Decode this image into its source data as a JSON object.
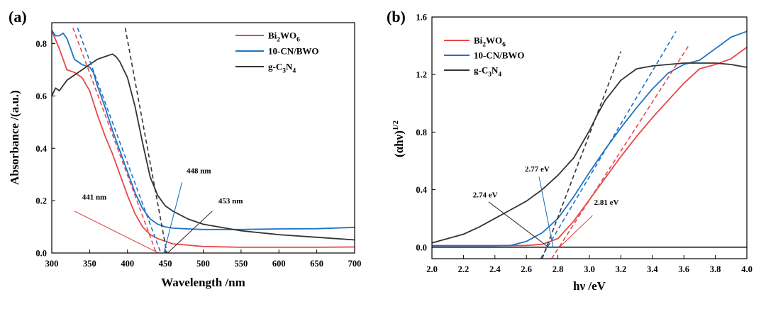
{
  "chart_data": [
    {
      "panel": "(a)",
      "type": "line",
      "title": "",
      "xlabel": "Wavelength /nm",
      "ylabel": "Absorbance /(a.u.)",
      "xlim": [
        300,
        700
      ],
      "ylim": [
        0,
        0.88
      ],
      "xticks": [
        "300",
        "350",
        "400",
        "450",
        "500",
        "550",
        "600",
        "650",
        "700"
      ],
      "yticks": [
        "0.0",
        "0.2",
        "0.4",
        "0.6",
        "0.8"
      ],
      "legend_position": "top-right",
      "series": [
        {
          "name": "Bi2WO6",
          "label_parts": [
            "Bi",
            "2",
            "WO",
            "6"
          ],
          "color": "#e8474b",
          "x": [
            300,
            310,
            320,
            330,
            340,
            350,
            360,
            370,
            380,
            390,
            400,
            410,
            420,
            430,
            440,
            450,
            460,
            480,
            500,
            550,
            600,
            650,
            700
          ],
          "y": [
            0.85,
            0.78,
            0.7,
            0.69,
            0.67,
            0.62,
            0.53,
            0.45,
            0.38,
            0.3,
            0.22,
            0.15,
            0.1,
            0.07,
            0.055,
            0.045,
            0.035,
            0.03,
            0.025,
            0.022,
            0.022,
            0.022,
            0.023
          ]
        },
        {
          "name": "10-CN/BWO",
          "label_parts": [
            "10-CN/BWO"
          ],
          "color": "#1f73c6",
          "x": [
            300,
            305,
            310,
            315,
            320,
            325,
            330,
            340,
            350,
            355,
            360,
            370,
            380,
            390,
            400,
            410,
            420,
            430,
            440,
            450,
            460,
            480,
            500,
            550,
            600,
            650,
            700
          ],
          "y": [
            0.85,
            0.83,
            0.83,
            0.84,
            0.82,
            0.78,
            0.74,
            0.72,
            0.71,
            0.69,
            0.64,
            0.56,
            0.47,
            0.39,
            0.31,
            0.23,
            0.17,
            0.13,
            0.11,
            0.1,
            0.095,
            0.092,
            0.09,
            0.09,
            0.092,
            0.093,
            0.098
          ]
        },
        {
          "name": "g-C3N4",
          "label_parts": [
            "g-C",
            "3",
            "N",
            "4"
          ],
          "color": "#333333",
          "x": [
            300,
            305,
            310,
            320,
            330,
            340,
            350,
            360,
            370,
            380,
            385,
            390,
            395,
            400,
            410,
            420,
            430,
            440,
            450,
            460,
            480,
            500,
            550,
            600,
            650,
            700
          ],
          "y": [
            0.6,
            0.63,
            0.62,
            0.66,
            0.68,
            0.7,
            0.72,
            0.74,
            0.75,
            0.76,
            0.75,
            0.73,
            0.7,
            0.67,
            0.56,
            0.42,
            0.29,
            0.22,
            0.18,
            0.16,
            0.13,
            0.11,
            0.085,
            0.07,
            0.06,
            0.05
          ]
        }
      ],
      "tangents": [
        {
          "series": "Bi2WO6",
          "x": [
            328,
            438
          ],
          "y": [
            0.86,
            0.0
          ],
          "color": "#e8474b"
        },
        {
          "series": "10-CN/BWO",
          "x": [
            334,
            444
          ],
          "y": [
            0.86,
            0.0
          ],
          "color": "#1f73c6"
        },
        {
          "series": "g-C3N4",
          "x": [
            397,
            452
          ],
          "y": [
            0.86,
            0.0
          ],
          "color": "#333333"
        }
      ],
      "annotations": [
        {
          "text": "441 nm",
          "text_at": [
            340,
            0.205
          ],
          "pointer_from": [
            330,
            0.16
          ],
          "pointer_to": [
            441,
            0.0
          ],
          "color": "#e8474b"
        },
        {
          "text": "448 nm",
          "text_at": [
            478,
            0.305
          ],
          "pointer_from": [
            472,
            0.27
          ],
          "pointer_to": [
            448,
            0.0
          ],
          "color": "#1f73c6"
        },
        {
          "text": "453 nm",
          "text_at": [
            520,
            0.19
          ],
          "pointer_from": [
            512,
            0.16
          ],
          "pointer_to": [
            453,
            0.0
          ],
          "color": "#333333"
        }
      ]
    },
    {
      "panel": "(b)",
      "type": "line",
      "title": "",
      "xlabel": "hν /eV",
      "ylabel": "(αhν)",
      "ylabel_superscript": "1/2",
      "xlim": [
        2.0,
        4.0
      ],
      "ylim": [
        -0.08,
        1.6
      ],
      "xticks": [
        "2.0",
        "2.2",
        "2.4",
        "2.6",
        "2.8",
        "3.0",
        "3.2",
        "3.4",
        "3.6",
        "3.8",
        "4.0"
      ],
      "yticks": [
        "0.0",
        "0.4",
        "0.8",
        "1.2",
        "1.6"
      ],
      "baseline": 0.0,
      "legend_position": "top-left",
      "series": [
        {
          "name": "Bi2WO6",
          "label_parts": [
            "Bi",
            "2",
            "WO",
            "6"
          ],
          "color": "#e8474b",
          "x": [
            2.0,
            2.2,
            2.4,
            2.6,
            2.7,
            2.8,
            2.9,
            3.0,
            3.1,
            3.2,
            3.3,
            3.4,
            3.5,
            3.6,
            3.7,
            3.8,
            3.9,
            4.0
          ],
          "y": [
            0.01,
            0.01,
            0.01,
            0.012,
            0.02,
            0.06,
            0.18,
            0.33,
            0.48,
            0.63,
            0.77,
            0.9,
            1.02,
            1.14,
            1.24,
            1.27,
            1.31,
            1.39
          ]
        },
        {
          "name": "10-CN/BWO",
          "label_parts": [
            "10-CN/BWO"
          ],
          "color": "#1f73c6",
          "x": [
            2.0,
            2.2,
            2.4,
            2.5,
            2.6,
            2.7,
            2.8,
            2.9,
            3.0,
            3.1,
            3.2,
            3.3,
            3.4,
            3.5,
            3.6,
            3.7,
            3.8,
            3.9,
            4.0
          ],
          "y": [
            0.01,
            0.01,
            0.01,
            0.012,
            0.04,
            0.1,
            0.2,
            0.35,
            0.52,
            0.68,
            0.83,
            0.97,
            1.1,
            1.21,
            1.27,
            1.3,
            1.38,
            1.46,
            1.5
          ]
        },
        {
          "name": "g-C3N4",
          "label_parts": [
            "g-C",
            "3",
            "N",
            "4"
          ],
          "color": "#333333",
          "x": [
            2.0,
            2.1,
            2.2,
            2.3,
            2.4,
            2.5,
            2.6,
            2.7,
            2.8,
            2.9,
            3.0,
            3.05,
            3.1,
            3.2,
            3.3,
            3.4,
            3.5,
            3.6,
            3.7,
            3.8,
            3.9,
            4.0
          ],
          "y": [
            0.03,
            0.06,
            0.09,
            0.14,
            0.2,
            0.26,
            0.32,
            0.4,
            0.5,
            0.62,
            0.81,
            0.92,
            1.02,
            1.16,
            1.24,
            1.26,
            1.27,
            1.28,
            1.28,
            1.28,
            1.27,
            1.25
          ]
        }
      ],
      "tangents": [
        {
          "series": "Bi2WO6",
          "x": [
            2.76,
            3.63
          ],
          "y": [
            -0.08,
            1.4
          ],
          "color": "#e8474b"
        },
        {
          "series": "10-CN/BWO",
          "x": [
            2.69,
            3.55
          ],
          "y": [
            -0.08,
            1.5
          ],
          "color": "#1f73c6"
        },
        {
          "series": "g-C3N4",
          "x": [
            2.7,
            3.2
          ],
          "y": [
            -0.08,
            1.36
          ],
          "color": "#333333"
        }
      ],
      "annotations": [
        {
          "text": "2.74 eV",
          "text_at": [
            2.26,
            0.345
          ],
          "pointer_from": [
            2.36,
            0.315
          ],
          "pointer_to": [
            2.74,
            0.0
          ],
          "color": "#333333"
        },
        {
          "text": "2.77 eV",
          "text_at": [
            2.59,
            0.525
          ],
          "pointer_from": [
            2.68,
            0.49
          ],
          "pointer_to": [
            2.77,
            0.0
          ],
          "color": "#1f73c6"
        },
        {
          "text": "2.81 eV",
          "text_at": [
            3.03,
            0.295
          ],
          "pointer_from": [
            3.02,
            0.22
          ],
          "pointer_to": [
            2.81,
            0.0
          ],
          "color": "#e8474b"
        }
      ]
    }
  ]
}
